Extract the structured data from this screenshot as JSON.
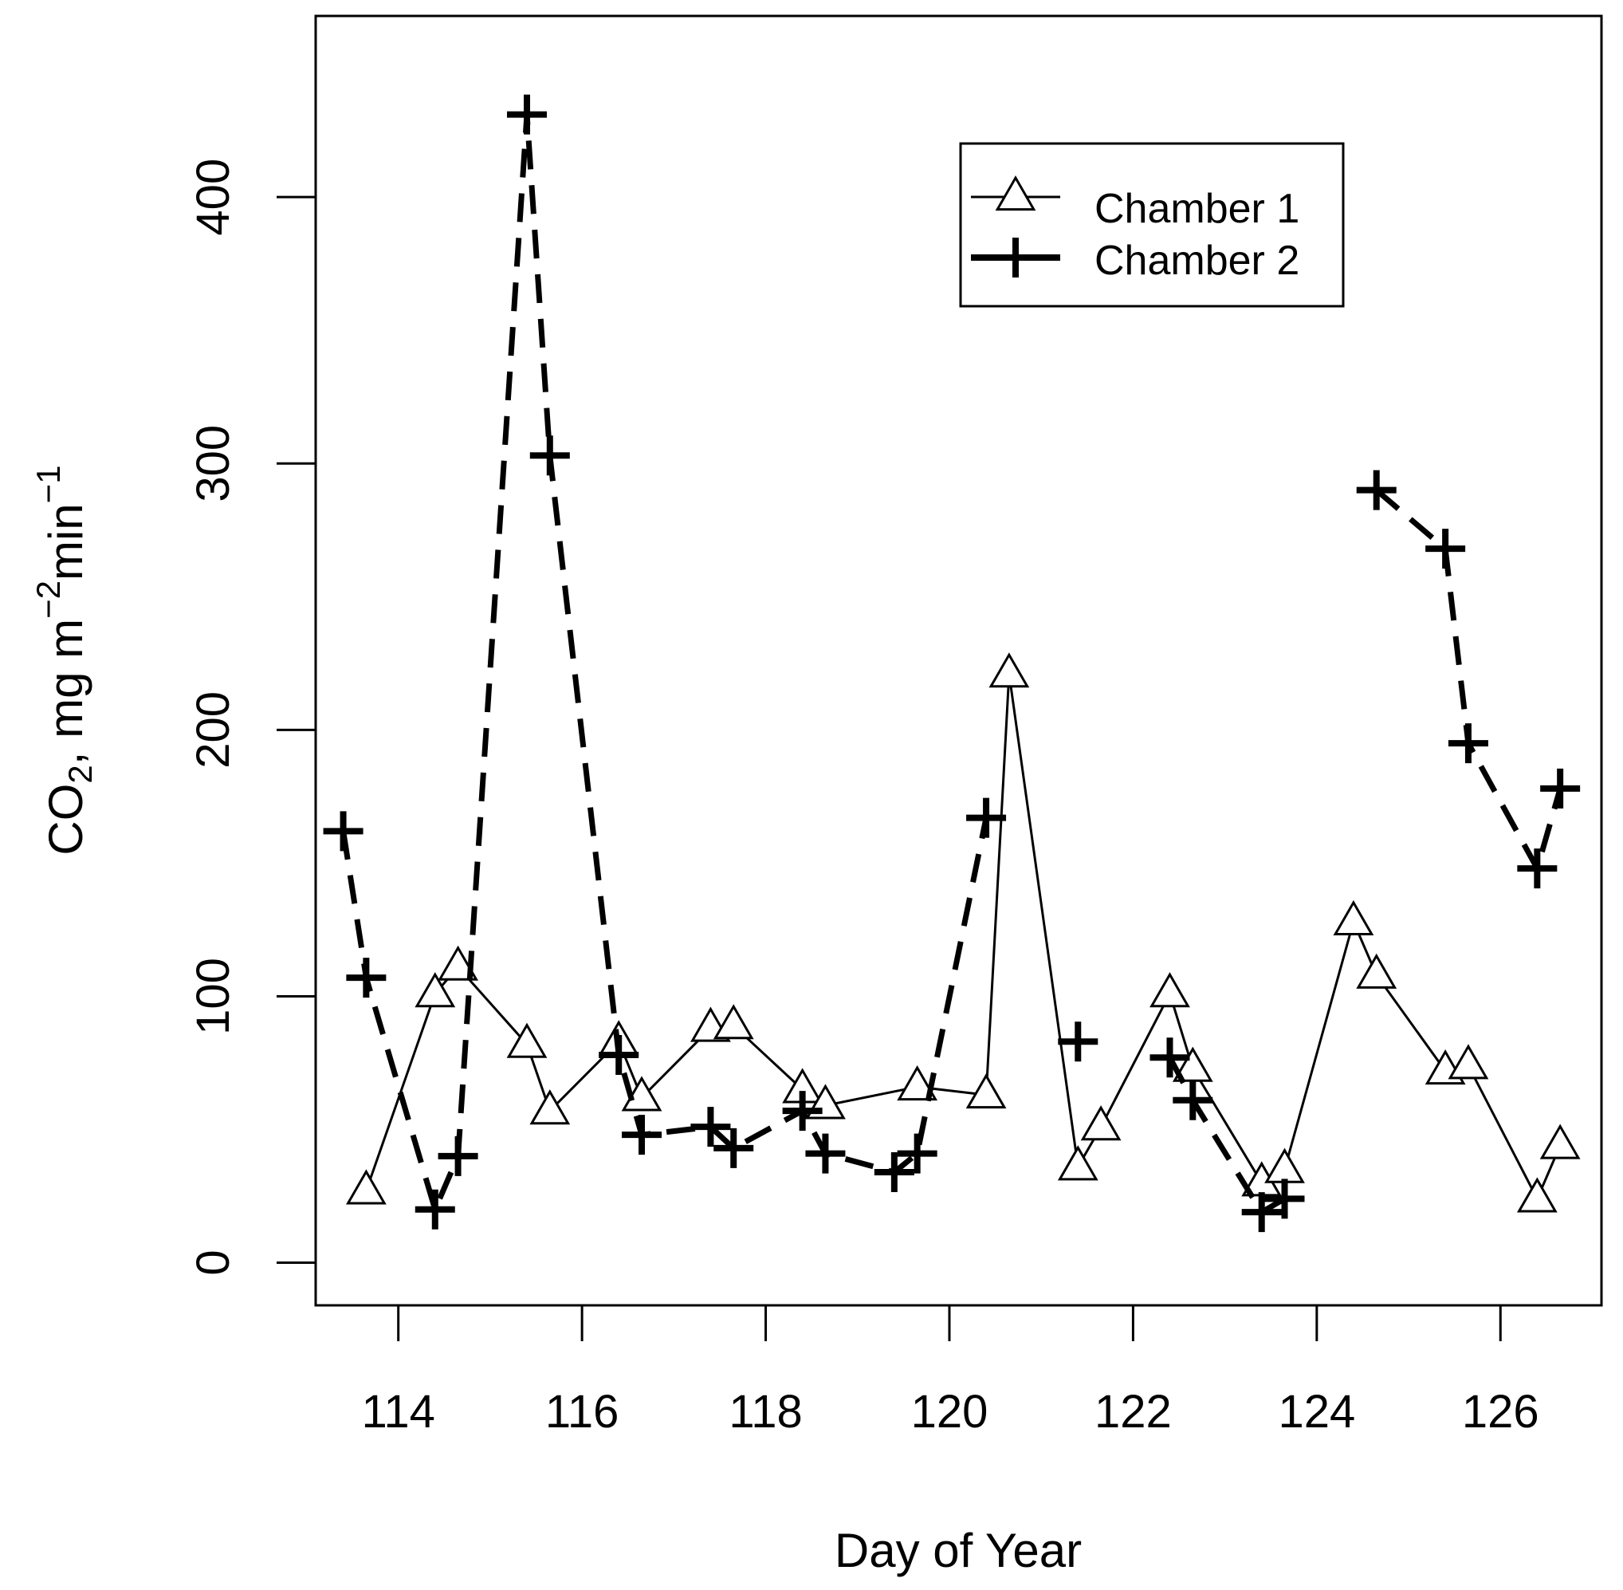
{
  "chart_data": {
    "type": "line",
    "title": "",
    "xlabel": "Day of Year",
    "ylabel": {
      "main": "CO",
      "sub": "2",
      "mid": ", mg m",
      "sup1": "−2",
      "mid2": "min",
      "sup2": "−1"
    },
    "xlim": [
      113.1,
      127.1
    ],
    "ylim": [
      -16,
      468
    ],
    "x_ticks": [
      114,
      116,
      118,
      120,
      122,
      124,
      126
    ],
    "y_ticks": [
      0,
      100,
      200,
      300,
      400
    ],
    "grid": false,
    "legend_position": "top-right",
    "series": [
      {
        "name": "Chamber 1",
        "marker": "triangle",
        "line": "thin",
        "segments": [
          [
            [
              113.65,
              27
            ],
            [
              114.4,
              101
            ],
            [
              114.65,
              111
            ],
            [
              115.4,
              82
            ],
            [
              115.65,
              57
            ],
            [
              116.4,
              83
            ],
            [
              116.65,
              62
            ],
            [
              117.4,
              88
            ],
            [
              117.65,
              89
            ],
            [
              118.4,
              65
            ],
            [
              118.65,
              59
            ],
            [
              119.65,
              66
            ],
            [
              120.4,
              63
            ],
            [
              120.65,
              221
            ],
            [
              121.4,
              36
            ],
            [
              121.65,
              51
            ],
            [
              122.4,
              101
            ],
            [
              122.65,
              73
            ],
            [
              123.4,
              30
            ],
            [
              123.65,
              35
            ],
            [
              124.4,
              128
            ],
            [
              124.65,
              108
            ],
            [
              125.4,
              72
            ],
            [
              125.65,
              74
            ],
            [
              126.4,
              24
            ],
            [
              126.65,
              44
            ]
          ]
        ]
      },
      {
        "name": "Chamber 2",
        "marker": "plus",
        "line": "thick-dashed",
        "segments": [
          [
            [
              113.4,
              162
            ],
            [
              113.65,
              107
            ],
            [
              114.4,
              20
            ],
            [
              114.65,
              40
            ],
            [
              115.4,
              431
            ],
            [
              115.65,
              303
            ],
            [
              116.4,
              78
            ],
            [
              116.65,
              48
            ],
            [
              117.4,
              51
            ],
            [
              117.65,
              43
            ],
            [
              118.4,
              57
            ],
            [
              118.65,
              41
            ],
            [
              119.4,
              34
            ],
            [
              119.65,
              41
            ],
            [
              120.4,
              167
            ]
          ],
          [
            [
              121.4,
              83
            ]
          ],
          [
            [
              122.4,
              77
            ],
            [
              122.65,
              61
            ],
            [
              123.4,
              19
            ],
            [
              123.65,
              24
            ]
          ],
          [
            [
              124.65,
              290
            ],
            [
              125.4,
              268
            ],
            [
              125.65,
              195
            ],
            [
              126.4,
              148
            ],
            [
              126.65,
              178
            ]
          ]
        ]
      }
    ]
  }
}
